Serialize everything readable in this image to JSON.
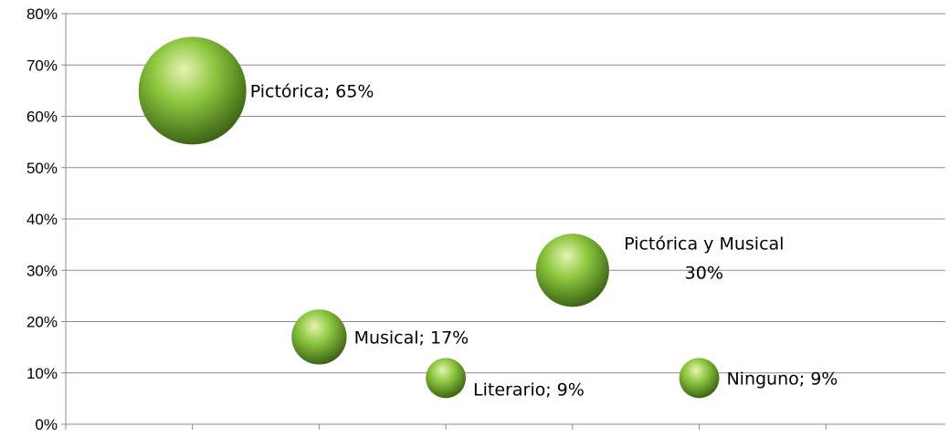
{
  "chart_data": {
    "type": "bubble",
    "title": "",
    "xlabel": "",
    "ylabel": "",
    "ylim": [
      0,
      80
    ],
    "ytick_step": 10,
    "ytick_labels": [
      "0%",
      "10%",
      "20%",
      "30%",
      "40%",
      "50%",
      "60%",
      "70%",
      "80%"
    ],
    "xlim": [
      0,
      7
    ],
    "x_gridlines": false,
    "y_gridlines": true,
    "legend": "none",
    "colors": {
      "bubble_light": "#e7f3b4",
      "bubble_mid": "#8cc63e",
      "bubble_dark": "#3e6516",
      "gridline": "#8c8c8c"
    },
    "points": [
      {
        "category": "Pictórica",
        "x": 1,
        "y": 65,
        "size": 65,
        "label_lines": [
          "Pictórica; 65%"
        ]
      },
      {
        "category": "Musical",
        "x": 2,
        "y": 17,
        "size": 17,
        "label_lines": [
          "Musical; 17%"
        ]
      },
      {
        "category": "Literario",
        "x": 3,
        "y": 9,
        "size": 9,
        "label_lines": [
          "Literario; 9%"
        ]
      },
      {
        "category": "Pictórica y Musical",
        "x": 4,
        "y": 30,
        "size": 30,
        "label_lines": [
          "Pictórica y Musical",
          "30%"
        ]
      },
      {
        "category": "Ninguno",
        "x": 5,
        "y": 9,
        "size": 9,
        "label_lines": [
          "Ninguno; 9%"
        ]
      }
    ]
  }
}
